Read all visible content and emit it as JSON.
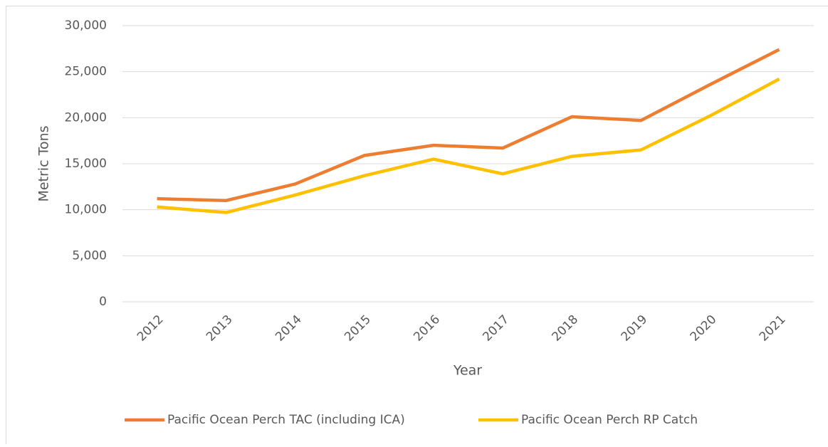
{
  "chart_data": {
    "type": "line",
    "x_label": "Year",
    "y_label": "Metric Tons",
    "categories": [
      "2012",
      "2013",
      "2014",
      "2015",
      "2016",
      "2017",
      "2018",
      "2019",
      "2020",
      "2021"
    ],
    "series": [
      {
        "name": "Pacific Ocean Perch TAC (including ICA)",
        "color": "#ed7d31",
        "values": [
          11200,
          11000,
          12800,
          15900,
          17000,
          16700,
          20100,
          19700,
          23600,
          27400
        ]
      },
      {
        "name": "Pacific Ocean Perch RP Catch",
        "color": "#ffc000",
        "values": [
          10300,
          9700,
          11600,
          13700,
          15500,
          13900,
          15800,
          16500,
          20200,
          24200
        ]
      }
    ],
    "ylim": [
      0,
      30000
    ],
    "yticks": [
      0,
      {
        "value": 5000,
        "label": "5,000"
      },
      {
        "value": 10000,
        "label": "10,000"
      },
      {
        "value": 15000,
        "label": "15,000"
      },
      {
        "value": 20000,
        "label": "20,000"
      },
      {
        "value": 25000,
        "label": "25,000"
      },
      {
        "value": 30000,
        "label": "30,000"
      }
    ],
    "grid": true,
    "legend": "bottom"
  }
}
